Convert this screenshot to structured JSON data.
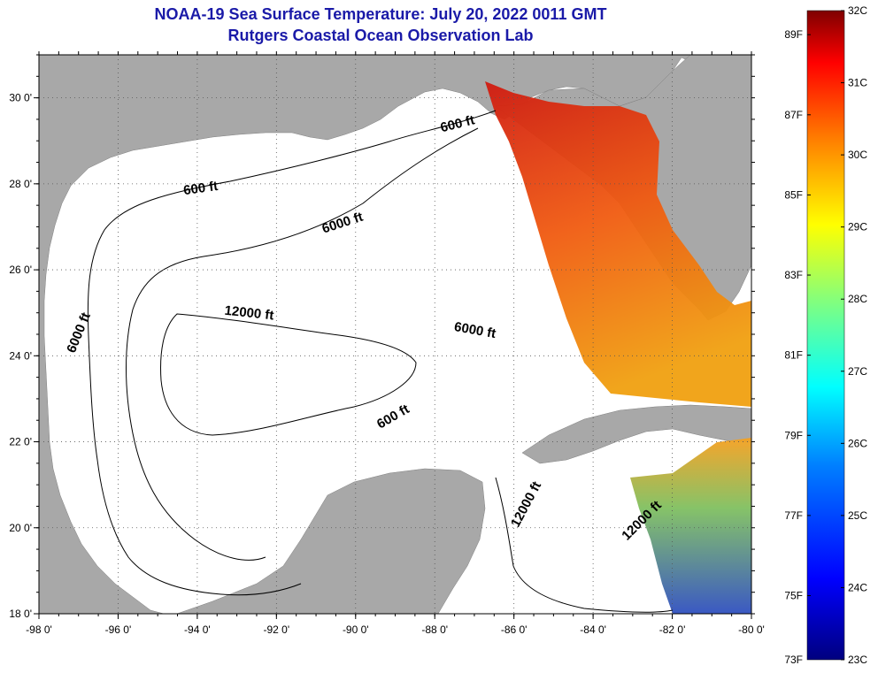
{
  "header": {
    "title": "NOAA-19 Sea Surface Temperature:  July 20, 2022 0011 GMT",
    "subtitle": "Rutgers Coastal Ocean Observation Lab"
  },
  "map": {
    "lon_range": [
      -98,
      -80
    ],
    "lat_range": [
      18,
      31
    ],
    "lon_ticks": [
      {
        "value": -98,
        "label": "-98 0'"
      },
      {
        "value": -96,
        "label": "-96 0'"
      },
      {
        "value": -94,
        "label": "-94 0'"
      },
      {
        "value": -92,
        "label": "-92 0'"
      },
      {
        "value": -90,
        "label": "-90 0'"
      },
      {
        "value": -88,
        "label": "-88 0'"
      },
      {
        "value": -86,
        "label": "-86 0'"
      },
      {
        "value": -84,
        "label": "-84 0'"
      },
      {
        "value": -82,
        "label": "-82 0'"
      },
      {
        "value": -80,
        "label": "-80 0'"
      }
    ],
    "lat_ticks": [
      {
        "value": 18,
        "label": "18 0'"
      },
      {
        "value": 20,
        "label": "20 0'"
      },
      {
        "value": 22,
        "label": "22 0'"
      },
      {
        "value": 24,
        "label": "24 0'"
      },
      {
        "value": 26,
        "label": "26 0'"
      },
      {
        "value": 28,
        "label": "28 0'"
      },
      {
        "value": 30,
        "label": "30 0'"
      }
    ],
    "grid": "dotted",
    "land_color": "#a8a8a8",
    "water_color": "#ffffff",
    "contour_labels": [
      {
        "text": "600 ft",
        "lon": -93.9,
        "lat": 27.8,
        "angle": -8
      },
      {
        "text": "600 ft",
        "lon": -87.4,
        "lat": 29.3,
        "angle": -14
      },
      {
        "text": "6000 ft",
        "lon": -90.3,
        "lat": 27.0,
        "angle": -18
      },
      {
        "text": "12000 ft",
        "lon": -92.7,
        "lat": 24.9,
        "angle": 6
      },
      {
        "text": "6000 ft",
        "lon": -87.0,
        "lat": 24.5,
        "angle": 10
      },
      {
        "text": "6000 ft",
        "lon": -96.9,
        "lat": 24.5,
        "angle": -68
      },
      {
        "text": "600 ft",
        "lon": -89.0,
        "lat": 22.5,
        "angle": -30
      },
      {
        "text": "12000 ft",
        "lon": -85.6,
        "lat": 20.5,
        "angle": -62
      },
      {
        "text": "12000 ft",
        "lon": -82.7,
        "lat": 20.1,
        "angle": -45
      }
    ]
  },
  "colorbar": {
    "min_c": 23,
    "max_c": 32,
    "celsius_labels": [
      "32C",
      "31C",
      "30C",
      "29C",
      "28C",
      "27C",
      "26C",
      "25C",
      "24C",
      "23C"
    ],
    "fahrenheit_labels": [
      "89F",
      "87F",
      "85F",
      "83F",
      "81F",
      "79F",
      "77F",
      "75F",
      "73F"
    ],
    "fahrenheit_values": [
      89,
      87,
      85,
      83,
      81,
      79,
      77,
      75,
      73
    ],
    "colors": [
      "#00007f",
      "#0000ff",
      "#0080ff",
      "#00ffff",
      "#80ff80",
      "#ffff00",
      "#ff8000",
      "#ff0000",
      "#7f0000"
    ]
  }
}
